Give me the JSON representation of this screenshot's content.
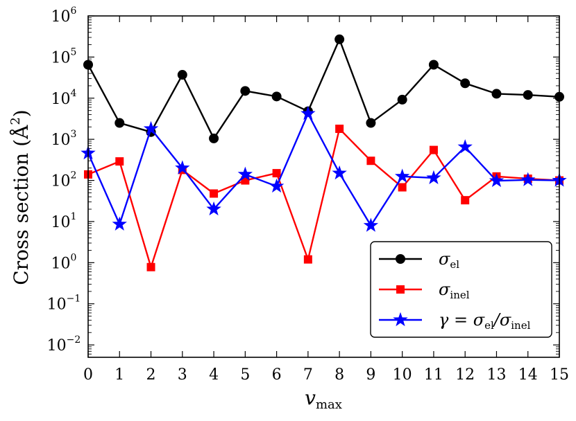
{
  "chart_data": {
    "type": "line",
    "yscale": "log",
    "title": "",
    "xlabel": "v",
    "xlabel_sub": "max",
    "ylabel": "Cross section (Å",
    "ylabel_sup": "2",
    "ylabel_close": ")",
    "xlim": [
      0,
      15
    ],
    "ylim": [
      0.005,
      1000000
    ],
    "x": [
      0,
      1,
      2,
      3,
      4,
      5,
      6,
      7,
      8,
      9,
      10,
      11,
      12,
      13,
      14,
      15
    ],
    "x_tick_labels": [
      "0",
      "1",
      "2",
      "3",
      "4",
      "5",
      "6",
      "7",
      "8",
      "9",
      "10",
      "11",
      "12",
      "13",
      "14",
      "15"
    ],
    "y_ticks": [
      {
        "value": 0.01,
        "base": "10",
        "exp": "−2"
      },
      {
        "value": 0.1,
        "base": "10",
        "exp": "−1"
      },
      {
        "value": 1,
        "base": "10",
        "exp": "0"
      },
      {
        "value": 10,
        "base": "10",
        "exp": "1"
      },
      {
        "value": 100,
        "base": "10",
        "exp": "2"
      },
      {
        "value": 1000,
        "base": "10",
        "exp": "3"
      },
      {
        "value": 10000,
        "base": "10",
        "exp": "4"
      },
      {
        "value": 100000,
        "base": "10",
        "exp": "5"
      },
      {
        "value": 1000000,
        "base": "10",
        "exp": "6"
      }
    ],
    "legend_position": "bottom-right",
    "series": [
      {
        "name": "σ_el",
        "legend_main": "σ",
        "legend_sub": "el",
        "color": "#000000",
        "marker": "circle",
        "values": [
          65000,
          2500,
          1500,
          37000,
          1050,
          15000,
          11000,
          4800,
          270000,
          2500,
          9200,
          65000,
          23000,
          12800,
          12000,
          10800
        ]
      },
      {
        "name": "σ_inel",
        "legend_main": "σ",
        "legend_sub": "inel",
        "color": "#ff0000",
        "marker": "square",
        "values": [
          140,
          290,
          0.78,
          180,
          48,
          100,
          150,
          1.2,
          1800,
          300,
          68,
          550,
          33,
          125,
          110,
          100
        ]
      },
      {
        "name": "γ = σ_el/σ_inel",
        "legend_main": "γ = σ",
        "legend_sub": "el",
        "legend_mid": "/σ",
        "legend_sub2": "inel",
        "color": "#0000ff",
        "marker": "star",
        "values": [
          460,
          8.6,
          1800,
          200,
          20,
          140,
          72,
          4200,
          150,
          8.0,
          125,
          115,
          650,
          98,
          103,
          100
        ]
      }
    ]
  }
}
